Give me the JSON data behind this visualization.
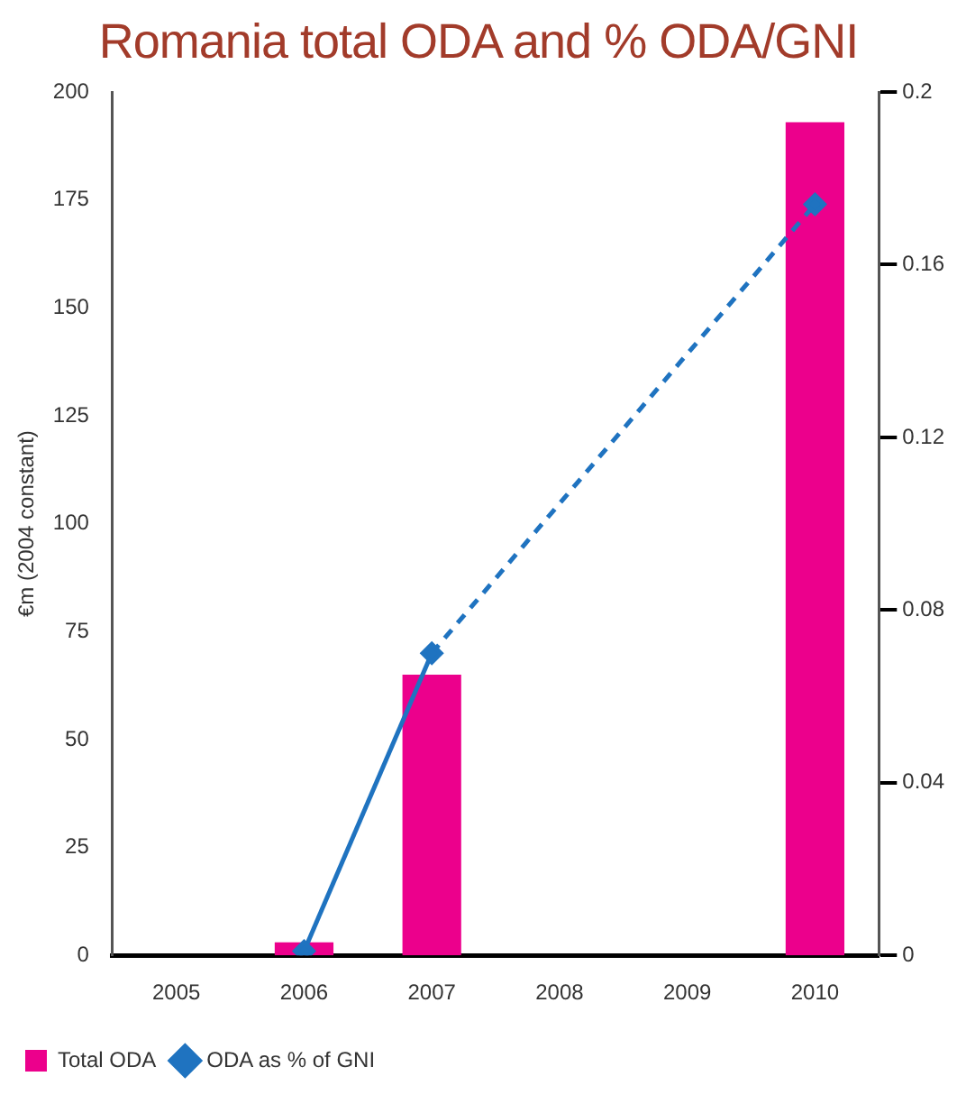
{
  "chart_data": {
    "type": "bar",
    "title": "Romania total ODA and % ODA/GNI",
    "ylabel": "€m (2004 constant)",
    "categories": [
      "2005",
      "2006",
      "2007",
      "2008",
      "2009",
      "2010"
    ],
    "series": [
      {
        "name": "Total ODA",
        "color": "#ec008c",
        "values": [
          null,
          3,
          65,
          null,
          null,
          193
        ]
      },
      {
        "name": "ODA as % of GNI",
        "type": "line",
        "axis": "y2",
        "color": "#1f73c0",
        "values": [
          null,
          0.001,
          0.07,
          null,
          null,
          0.174
        ]
      }
    ],
    "ylim": [
      0,
      200
    ],
    "yticks": [
      0,
      25,
      50,
      75,
      100,
      125,
      150,
      175,
      200
    ],
    "y2lim": [
      0,
      0.2
    ],
    "y2ticks": [
      0,
      0.04,
      0.08,
      0.12,
      0.16,
      0.2
    ],
    "grid": false,
    "legend": "bottom left",
    "marker": "diamond",
    "line_style": "solid"
  }
}
